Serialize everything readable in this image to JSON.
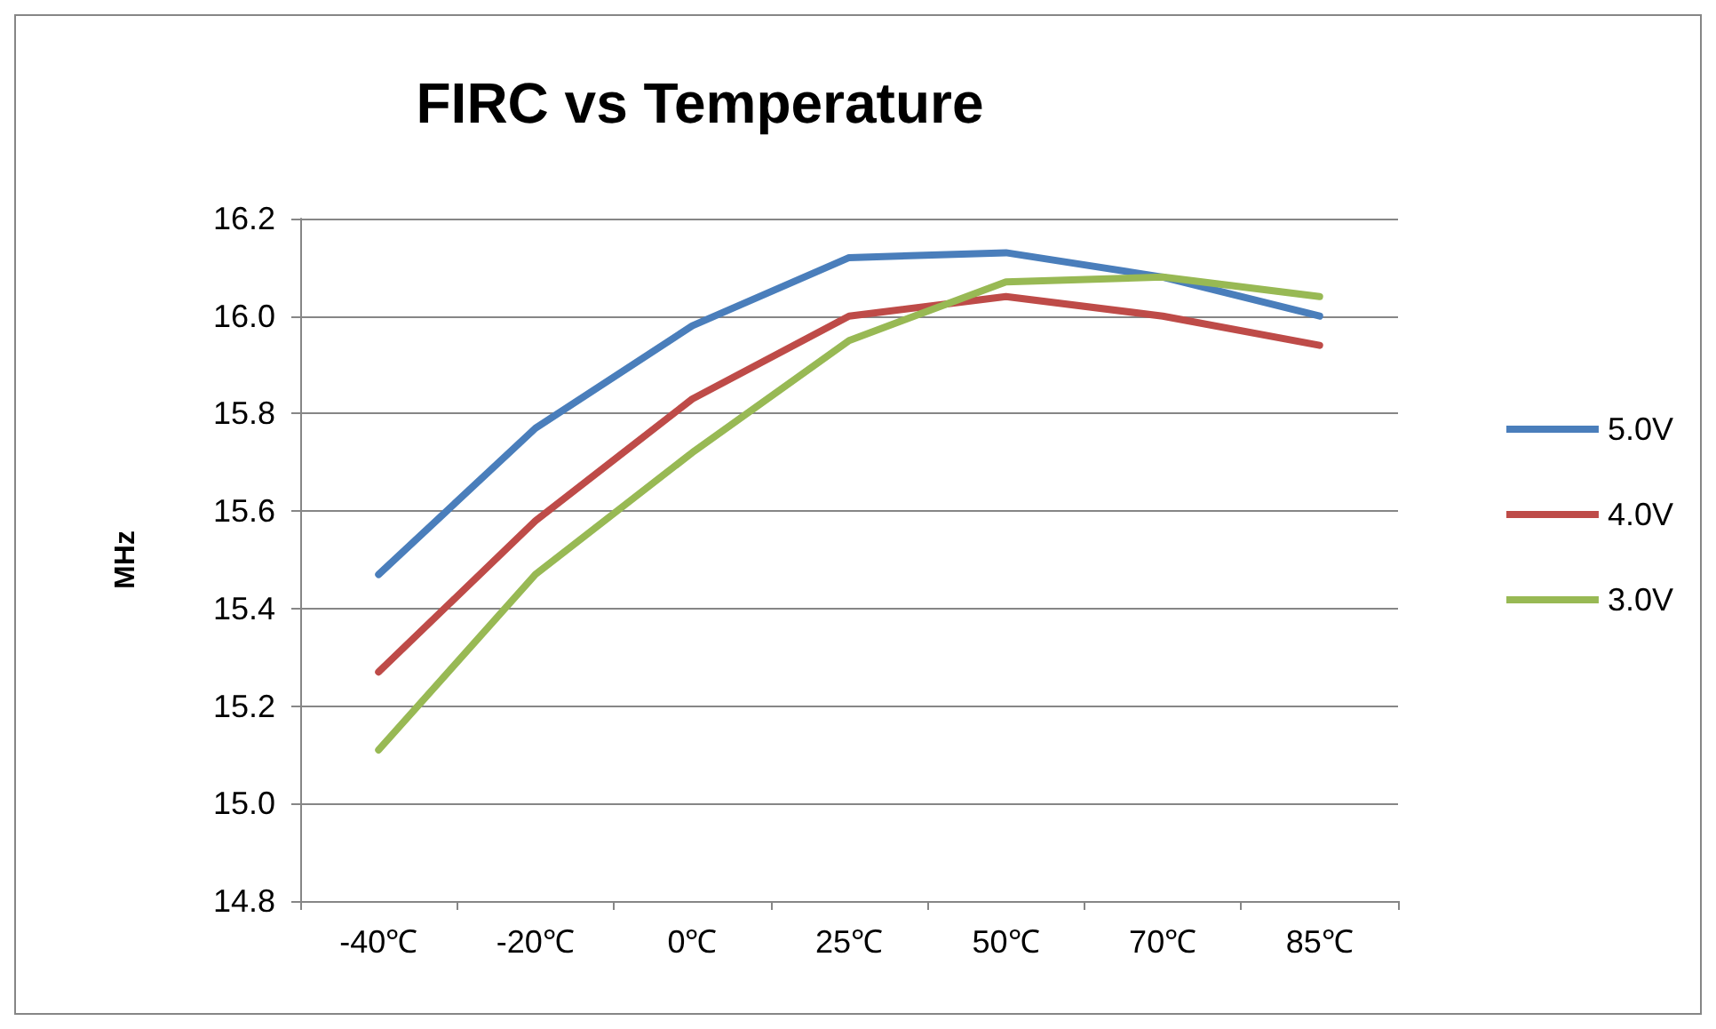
{
  "chart_data": {
    "type": "line",
    "title": "FIRC vs Temperature",
    "ylabel": "MHz",
    "categories": [
      "-40℃",
      "-20℃",
      "0℃",
      "25℃",
      "50℃",
      "70℃",
      "85℃"
    ],
    "series": [
      {
        "name": "5.0V",
        "color": "#4a7ebb",
        "values": [
          15.47,
          15.77,
          15.98,
          16.12,
          16.13,
          16.08,
          16.0
        ]
      },
      {
        "name": "4.0V",
        "color": "#be4b48",
        "values": [
          15.27,
          15.58,
          15.83,
          16.0,
          16.04,
          16.0,
          15.94
        ]
      },
      {
        "name": "3.0V",
        "color": "#98b954",
        "values": [
          15.11,
          15.47,
          15.72,
          15.95,
          16.07,
          16.08,
          16.04
        ]
      }
    ],
    "ylim": [
      14.8,
      16.2
    ],
    "yticks": [
      14.8,
      {
        "value": 15,
        "label": "15.0"
      },
      15.2,
      15.4,
      15.6,
      15.8,
      {
        "value": 16,
        "label": "16.0"
      },
      16.2
    ],
    "grid": "y",
    "legend": "right",
    "marker": "none",
    "line_style": "solid"
  }
}
